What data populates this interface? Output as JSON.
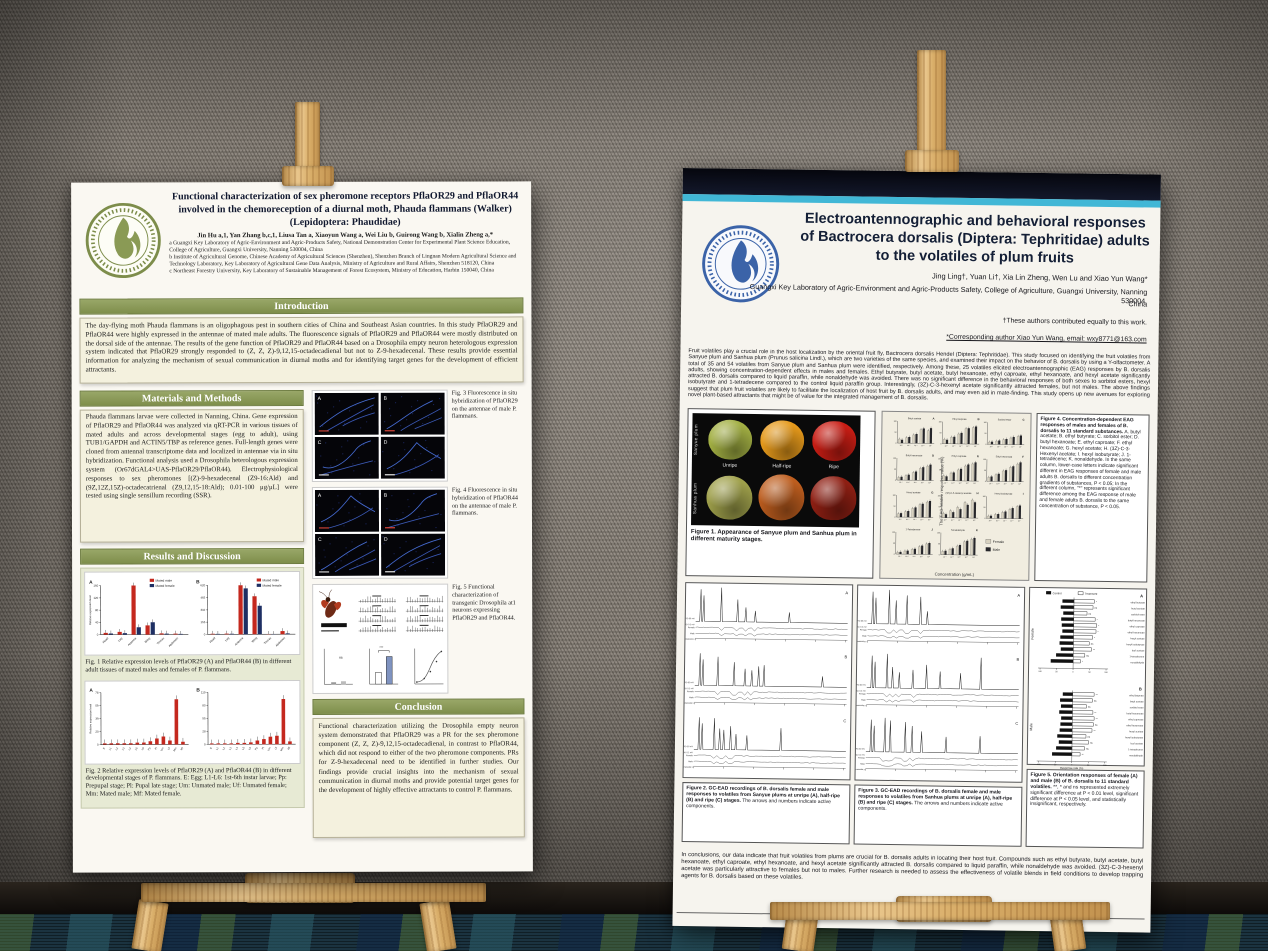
{
  "scene": {
    "colors": {
      "wall": "#8a837a",
      "baseboard": "#14100c",
      "carpet_base": "#1b3340",
      "carpet_accent_green": "#587836",
      "carpet_accent_teal": "#2c5e6a",
      "easel_wood": "#d9ae69"
    }
  },
  "left_poster": {
    "accent": "#7e8e4b",
    "title": "Functional characterization of sex pheromone receptors PflaOR29 and PflaOR44 involved in the chemoreception of a diurnal moth, Phauda flammans (Walker) (Lepidoptera: Phaudidae)",
    "authors": "Jin Hu a,1, Yan Zhang b,c,1, Liusa Tan a, Xiaoyun Wang a, Wei Liu b, Guirong Wang b, Xialin Zheng a,*",
    "affiliations": [
      "a Guangxi Key Laboratory of Agric-Environment and Agric-Products Safety, National Demonstration Center for Experimental Plant Science Education, College of Agriculture, Guangxi University, Nanning 530004, China",
      "b Institute of Agricultural Genome, Chinese Academy of Agricultural Sciences (Shenzhen), Shenzhen Branch of Lingnan Modern Agricultural Science and Technology Laboratory, Key Laboratory of Agricultural Gene Data Analysis, Ministry of Agriculture and Rural Affairs, Shenzhen 518120, China",
      "c Northeast Forestry University, Key Laboratory of Sustainable Management of Forest Ecosystem, Ministry of Education, Harbin 150040, China"
    ],
    "intro_heading": "Introduction",
    "intro_text": "The day-flying moth Phauda flammans is an oligophagous pest in southern cities of China and Southeast Asian countries. In this study PflaOR29 and PflaOR44 were highly expressed in the antennae of mated male adults. The fluorescence signals of PflaOR29 and PflaOR44 were mostly distributed on the dorsal side of the antennae. The results of the gene function of PflaOR29 and PflaOR44 based on a Drosophila empty neuron heterologous expression system indicated that PflaOR29 strongly responded to (Z, Z, Z)-9,12,15-octadecadienal but not to Z-9-hexadecenal. These results provide essential information for analyzing the mechanism of sexual communication in diurnal moths and for identifying target genes for the development of efficient attractants.",
    "methods_heading": "Materials and Methods",
    "methods_text": "Phauda flammans larvae were collected in Nanning, China. Gene expression of PflaOR29 and PflaOR44 was analyzed via qRT-PCR in various tissues of mated adults and across developmental stages (egg to adult), using TUB1/GAPDH and ACTIN5/TBP as reference genes. Full-length genes were cloned from antennal transcriptome data and localized in antennae via in situ hybridization. Functional analysis used a Drosophila heterologous expression system (Or67dGAL4>UAS-PflaOR29/PflaOR44). Electrophysiological responses to sex pheromones [(Z)-9-hexadecenal (Z9-16:Ald) and (9Z,12Z,15Z)-octadecatrienal (Z9,12,15-18:Ald); 0.01-100 μg/μL] were tested using single sensillum recording (SSR).",
    "results_heading": "Results and Discussion",
    "conclusion_heading": "Conclusion",
    "conclusion_text": "Functional characterization utilizing the Drosophila empty neuron system demonstrated that PflaOR29 was a PR for the sex pheromone component (Z, Z, Z)-9,12,15-octadecadienal, in contrast to PflaOR44, which did not respond to either of the two pheromone components. PRs for Z-9-hexadecenal need to be identified in further studies. Our findings provide crucial insights into the mechanism of sexual communication in diurnal moths and provide potential target genes for the development of highly effective attractants to control P. flammans.",
    "fig1": {
      "type": "bar",
      "legend": [
        "Mated male",
        "Mated female"
      ],
      "colors": [
        "#c4281e",
        "#1e2f63"
      ],
      "ylabel": "Relative expression level",
      "categories": [
        "Head",
        "Leg",
        "Antenna",
        "Wing",
        "Thorax",
        "Abdomen"
      ],
      "panels": [
        {
          "label": "A",
          "male": [
            6,
            9,
            160,
            30,
            4,
            3
          ],
          "female": [
            4,
            5,
            24,
            40,
            3,
            2
          ]
        },
        {
          "label": "B",
          "male": [
            8,
            10,
            620,
            480,
            4,
            40
          ],
          "female": [
            6,
            8,
            580,
            360,
            3,
            10
          ]
        }
      ],
      "caption": "Fig. 1 Relative expression levels of PflaOR29 (A) and PflaOR44 (B) in different adult tissues of mated males and females of P. flammans."
    },
    "fig2": {
      "type": "bar",
      "color": "#c4281e",
      "categories": [
        "E",
        "L1",
        "L2",
        "L3",
        "L4",
        "L5",
        "L6",
        "Pp",
        "Pl",
        "Um",
        "Uf",
        "Mm",
        "Mf"
      ],
      "panels": [
        {
          "label": "A",
          "values": [
            2,
            2,
            2,
            2,
            2,
            3,
            3,
            5,
            9,
            12,
            6,
            68,
            4
          ]
        },
        {
          "label": "B",
          "values": [
            2,
            2,
            2,
            2,
            3,
            3,
            4,
            8,
            11,
            16,
            18,
            96,
            6
          ]
        }
      ],
      "caption": "Fig. 2 Relative expression levels of PflaOR29 (A) and PflaOR44 (B) in different developmental stages of P. flammans. E: Egg; L1-L6: 1st-6th instar larvae; Pp: Prepupal stage; Pl: Pupal late stage; Um: Unmated male; Uf: Unmated female; Mm: Mated male; Mf: Mated female.",
      "caption2": "female."
    },
    "fig3": {
      "panel_labels": [
        "A",
        "B",
        "C",
        "D"
      ],
      "caption": "Fig. 3 Fluorescence in situ hybridization of PflaOR29 on the antennae of male P. flammans."
    },
    "fig4": {
      "panel_labels": [
        "A",
        "B",
        "C",
        "D"
      ],
      "caption": "Fig. 4 Fluorescence in situ hybridization of PflaOR44 on the antennae of male P. flammans."
    },
    "fig5": {
      "caption": "Fig. 5 Functional characterization of transgenic Drosophila at1 neurons expressing PflaOR29 and PflaOR44."
    }
  },
  "right_poster": {
    "accent": "#41b7d6",
    "title": "Electroantennographic and behavioral responses of Bactrocera dorsalis (Diptera: Tephritidae) adults to the volatiles of plum fruits",
    "authors": "Jing Ling†, Yuan Li†, Xia Lin Zheng, Wen Lu and Xiao Yun Wang*",
    "affiliation": "Guangxi Key Laboratory of Agric-Environment and Agric-Products Safety, College of Agriculture, Guangxi University, Nanning 530004,",
    "affiliation2": "China",
    "note_equal": "†These authors contributed equally to this work.",
    "note_corresponding": "*Corresponding author Xiao Yun Wang, email: wxy8771@163.com",
    "abstract": "Fruit volatiles play a crucial role in the host localization by the oriental fruit fly, Bactrocera dorsalis Hendel (Diptera: Tephritidae). This study focused on identifying the fruit volatiles from Sanyue plum and Sanhua plum (Prunus salicina Lindl.), which are two varieties of the same species, and examined their impact on the behavior of B. dorsalis by using a Y-olfactometer. A total of 35 and 54 volatiles from Sanyue plum and Sanhua plum were identified, respectively. Among these, 25 volatiles elicited electroantennographic (EAG) responses by B. dorsalis adults, showing concentration-dependent effects in males and females. Ethyl butyrate, butyl acetate, butyl hexanoate, ethyl caproate, ethyl hexanoate, and hexyl acetate significantly attracted B. dorsalis compared to liquid paraffin, while nonaldehyde was avoided. There was no significant difference in the behavioral responses of both sexes to sorbitol esters, hexyl isobutyrate and 1-tetradecene compared to the control liquid paraffin group. Interestingly, (3Z)-C-3-hexenyl acetate significantly attracted females, but not males. The above findings suggest that plum fruit volatiles are likely to facilitate the localization of host fruit by B. dorsalis adults, and may even aid in mate-finding. This study opens up new avenues for exploring novel plant-based attractants that might be of value for the integrated management of B. dorsalis.",
    "fig1": {
      "row_labels": [
        "Sanyue plum",
        "Sanhua plum"
      ],
      "col_labels": [
        "Unripe",
        "Half-ripe",
        "Ripe"
      ],
      "plum_colors": [
        [
          "#a2af43",
          "#e5991b",
          "#c81d14"
        ],
        [
          "#9fa04b",
          "#bd5d1e",
          "#8e1f13"
        ]
      ],
      "caption": "Figure 1. Appearance of Sanyue plum and Sanhua plum in different maturity stages."
    },
    "fig4": {
      "type": "bar",
      "legend": [
        "Female",
        "Male"
      ],
      "colors": [
        "#d8d2c0",
        "#26262a"
      ],
      "ylabel": "The EAG relative response value (%)",
      "xlabel": "Concentration (g/mL)",
      "xticks": [
        "10⁻⁴",
        "10⁻³",
        "10⁻²",
        "10⁻¹",
        "10⁰"
      ],
      "charts": [
        {
          "letter": "A",
          "title": "Butyl acetate",
          "female": [
            18,
            25,
            38,
            62,
            58
          ],
          "male": [
            15,
            28,
            42,
            68,
            70
          ]
        },
        {
          "letter": "B",
          "title": "Ethyl butyrate",
          "female": [
            20,
            30,
            45,
            70,
            75
          ],
          "male": [
            18,
            32,
            50,
            72,
            80
          ]
        },
        {
          "letter": "C",
          "title": "Sorbitol ester",
          "female": [
            10,
            15,
            22,
            30,
            38
          ],
          "male": [
            12,
            18,
            25,
            35,
            42
          ]
        },
        {
          "letter": "D",
          "title": "Butyl hexanoate",
          "female": [
            12,
            20,
            35,
            55,
            65
          ],
          "male": [
            15,
            25,
            40,
            60,
            72
          ]
        },
        {
          "letter": "E",
          "title": "Ethyl caproate",
          "female": [
            22,
            35,
            50,
            68,
            78
          ],
          "male": [
            20,
            38,
            55,
            75,
            85
          ]
        },
        {
          "letter": "F",
          "title": "Ethyl hexanoate",
          "female": [
            18,
            30,
            48,
            65,
            80
          ],
          "male": [
            22,
            35,
            52,
            70,
            88
          ]
        },
        {
          "letter": "G",
          "title": "Hexyl acetate",
          "female": [
            15,
            25,
            40,
            58,
            70
          ],
          "male": [
            18,
            28,
            45,
            62,
            75
          ]
        },
        {
          "letter": "H",
          "title": "(3Z)-C-3-Hexenyl acetate",
          "female": [
            20,
            32,
            48,
            70,
            82
          ],
          "male": [
            16,
            26,
            40,
            60,
            72
          ]
        },
        {
          "letter": "I",
          "title": "Hexyl isobutyrate",
          "female": [
            10,
            18,
            28,
            42,
            55
          ],
          "male": [
            12,
            20,
            32,
            48,
            60
          ]
        },
        {
          "letter": "J",
          "title": "1-Tetradecene",
          "female": [
            8,
            14,
            22,
            35,
            48
          ],
          "male": [
            10,
            16,
            25,
            40,
            52
          ]
        },
        {
          "letter": "K",
          "title": "Nonaldehyde",
          "female": [
            15,
            25,
            40,
            60,
            72
          ],
          "male": [
            18,
            30,
            45,
            65,
            78
          ]
        }
      ],
      "caption_bold": "Figure 4. Concentration-dependent EAG responses of males and females of B. dorsalis to 11 standard substances.",
      "caption_rest": "A. butyl acetate; B. ethyl butyrate; C. sorbitol ester; D. butyl hexanoate; E. ethyl caproate; F. ethyl hexanoate; G. hexyl acetate; H. (3Z)-C-3-Hexenyl acetate; I. hexyl isobutyrate; J. 1-tetradecene; K. nonaldehyde. In the same column, lower-case letters indicate significant different in EAG responses of female and male adults B. dorsalis to different concentration gradients of substances, P < 0.05; In the different column, \"*\" represents significant difference among the EAG response of male and female adults B. dorsalis to the same concentration of substance, P < 0.05."
    },
    "fig2": {
      "type": "line",
      "panel_labels": [
        "A",
        "B",
        "C"
      ],
      "trace_labels": [
        "FID 50 mV",
        "EAD 0.2 mV",
        "Female",
        "Male",
        "Timescale s"
      ],
      "panels_peaks": [
        [
          [
            0.1,
            1.0
          ],
          [
            0.22,
            0.55
          ],
          [
            0.28,
            0.25
          ],
          [
            0.35,
            0.12
          ],
          [
            0.6,
            0.08
          ]
        ],
        [
          [
            0.08,
            0.8
          ],
          [
            0.2,
            0.6
          ],
          [
            0.28,
            0.35
          ],
          [
            0.33,
            0.3
          ],
          [
            0.38,
            0.45
          ],
          [
            0.42,
            0.5
          ],
          [
            0.85,
            0.1
          ]
        ],
        [
          [
            0.06,
            0.9
          ],
          [
            0.1,
            0.5
          ],
          [
            0.13,
            0.45
          ],
          [
            0.18,
            0.6
          ],
          [
            0.22,
            0.3
          ],
          [
            0.3,
            0.25
          ],
          [
            0.55,
            0.55
          ]
        ]
      ],
      "caption_bold": "Figure 2. GC-EAD recordings of B. dorsalis female and male responses to volatiles from Sanyue plums at unripe (A), half-ripe (B) and ripe (C) stages.",
      "caption_rest": "The arrows and numbers indicate active components."
    },
    "fig3": {
      "type": "line",
      "panel_labels": [
        "A",
        "B",
        "C"
      ],
      "trace_labels": [
        "FID 50 mV",
        "EAD 0.2 mV",
        "Female",
        "Male",
        "Timescale s"
      ],
      "panels_peaks": [
        [
          [
            0.07,
            1.0
          ],
          [
            0.12,
            0.6
          ],
          [
            0.2,
            0.8
          ],
          [
            0.3,
            0.75
          ],
          [
            0.35,
            0.2
          ]
        ],
        [
          [
            0.06,
            1.0
          ],
          [
            0.1,
            0.5
          ],
          [
            0.15,
            0.3
          ],
          [
            0.25,
            0.4
          ],
          [
            0.35,
            0.6
          ],
          [
            0.45,
            0.35
          ],
          [
            0.6,
            0.3
          ],
          [
            0.75,
            0.9
          ]
        ],
        [
          [
            0.05,
            1.0
          ],
          [
            0.09,
            0.9
          ],
          [
            0.2,
            0.85
          ],
          [
            0.25,
            0.7
          ],
          [
            0.32,
            0.5
          ],
          [
            0.5,
            0.3
          ],
          [
            0.75,
            0.35
          ]
        ]
      ],
      "caption_bold": "Figure 3. GC-EAD recordings of B. dorsalis female and male responses to volatiles from Sanhua plums at unripe (A), half-ripe (B) and ripe (C) stages.",
      "caption_rest": "The arrows and numbers indicate active components."
    },
    "fig5": {
      "type": "bar",
      "legend": [
        "Control",
        "Treatment"
      ],
      "xlabel": "Response rate (%)",
      "categories": [
        "ethyl butyrate",
        "butyl acetate",
        "sorbitol ester",
        "butyl hexanoate",
        "ethyl caproate",
        "ethyl hexanoate",
        "hexyl acetate",
        "hexyl isobutyrate",
        "leaf acetate",
        "1-tetradecene",
        "nonaldehyde"
      ],
      "panels": [
        {
          "label": "A",
          "name": "Female",
          "control": [
            35,
            40,
            32,
            38,
            36,
            34,
            40,
            42,
            38,
            52,
            68
          ],
          "treatment": [
            62,
            58,
            40,
            65,
            70,
            68,
            58,
            48,
            55,
            35,
            22
          ],
          "sig": [
            "*",
            "ns",
            "ns",
            "*",
            "*",
            "*",
            "*",
            "ns",
            "**",
            "ns",
            "*"
          ]
        },
        {
          "label": "B",
          "name": "Male",
          "control": [
            30,
            38,
            35,
            40,
            34,
            36,
            38,
            45,
            40,
            48,
            60
          ],
          "treatment": [
            65,
            60,
            42,
            62,
            66,
            64,
            60,
            42,
            50,
            38,
            25
          ],
          "sig": [
            "**",
            "ns",
            "ns",
            "**",
            "**",
            "ns",
            "**",
            "ns",
            "ns",
            "ns",
            "**"
          ]
        }
      ],
      "caption_bold": "Figure 5. Orientation responses of female (A) and male (B) of B. dorsalis to 11 standard volatiles.",
      "caption_rest": "**, * and ns represented extremely significant difference at P < 0.01 level, significant difference at P < 0.05 level, and statistically insignificant, respectively."
    },
    "conclusions": "In conclusions, our data indicate that fruit volatiles from plums are crucial for B. dorsalis adults in locating their host fruit. Compounds such as ethyl butyrate, butyl acetate, butyl hexanoate, ethyl caproate, ethyl hexanoate, and hexyl acetate significantly attracted B. dorsalis compared to liquid paraffin, while nonaldehyde was avoided. (3Z)-C-3-hexenyl acetate was particularly attractive to females but not to males. Further research is needed to assess the effectiveness of volatile blends in field conditions to develop trapping agents for B. dorsalis based on these volatiles."
  }
}
